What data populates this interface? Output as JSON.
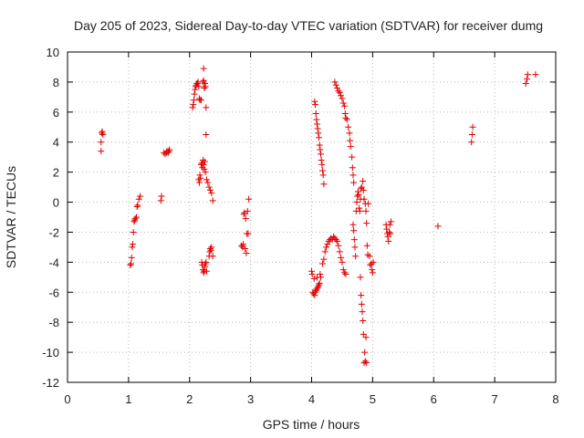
{
  "chart_data": {
    "type": "scatter",
    "title": "Day 205 of 2023, Sidereal Day-to-day VTEC variation (SDTVAR) for receiver dumg",
    "xlabel": "GPS time / hours",
    "ylabel": "SDTVAR / TECUs",
    "xlim": [
      0,
      8
    ],
    "ylim": [
      -12,
      10
    ],
    "xticks": [
      0,
      1,
      2,
      3,
      4,
      5,
      6,
      7,
      8
    ],
    "yticks": [
      -12,
      -10,
      -8,
      -6,
      -4,
      -2,
      0,
      2,
      4,
      6,
      8,
      10
    ],
    "grid": true,
    "marker": "+",
    "series": [
      {
        "name": "SDTVAR",
        "color": "#e00000",
        "points": [
          [
            0.55,
            3.4
          ],
          [
            0.55,
            4.0
          ],
          [
            0.56,
            4.6
          ],
          [
            0.57,
            4.7
          ],
          [
            0.58,
            4.5
          ],
          [
            1.03,
            -4.2
          ],
          [
            1.04,
            -4.1
          ],
          [
            1.05,
            -3.7
          ],
          [
            1.06,
            -3.0
          ],
          [
            1.07,
            -2.8
          ],
          [
            1.08,
            -2.0
          ],
          [
            1.09,
            -1.3
          ],
          [
            1.1,
            -1.2
          ],
          [
            1.11,
            -1.1
          ],
          [
            1.13,
            -1.0
          ],
          [
            1.14,
            -0.3
          ],
          [
            1.15,
            -0.2
          ],
          [
            1.17,
            0.2
          ],
          [
            1.19,
            0.4
          ],
          [
            1.53,
            0.1
          ],
          [
            1.54,
            0.4
          ],
          [
            1.58,
            3.3
          ],
          [
            1.6,
            3.2
          ],
          [
            1.62,
            3.3
          ],
          [
            1.63,
            3.4
          ],
          [
            1.65,
            3.3
          ],
          [
            1.66,
            3.4
          ],
          [
            1.67,
            3.5
          ],
          [
            2.05,
            6.3
          ],
          [
            2.06,
            6.5
          ],
          [
            2.07,
            6.8
          ],
          [
            2.08,
            7.2
          ],
          [
            2.09,
            7.5
          ],
          [
            2.1,
            7.7
          ],
          [
            2.11,
            7.8
          ],
          [
            2.12,
            7.9
          ],
          [
            2.13,
            7.9
          ],
          [
            2.14,
            8.0
          ],
          [
            2.15,
            7.7
          ],
          [
            2.16,
            6.9
          ],
          [
            2.17,
            6.8
          ],
          [
            2.19,
            6.8
          ],
          [
            2.22,
            8.0
          ],
          [
            2.23,
            8.1
          ],
          [
            2.23,
            8.9
          ],
          [
            2.24,
            7.6
          ],
          [
            2.25,
            7.9
          ],
          [
            2.26,
            7.7
          ],
          [
            2.27,
            6.3
          ],
          [
            2.27,
            4.5
          ],
          [
            2.15,
            1.5
          ],
          [
            2.16,
            1.3
          ],
          [
            2.17,
            1.8
          ],
          [
            2.18,
            1.6
          ],
          [
            2.19,
            2.5
          ],
          [
            2.2,
            2.6
          ],
          [
            2.21,
            2.3
          ],
          [
            2.22,
            2.8
          ],
          [
            2.23,
            2.5
          ],
          [
            2.24,
            2.2
          ],
          [
            2.25,
            2.7
          ],
          [
            2.26,
            2.0
          ],
          [
            2.28,
            1.5
          ],
          [
            2.3,
            1.3
          ],
          [
            2.32,
            1.0
          ],
          [
            2.34,
            0.8
          ],
          [
            2.36,
            0.6
          ],
          [
            2.38,
            0.1
          ],
          [
            2.2,
            -4.0
          ],
          [
            2.21,
            -4.2
          ],
          [
            2.22,
            -4.5
          ],
          [
            2.23,
            -4.7
          ],
          [
            2.24,
            -4.6
          ],
          [
            2.25,
            -4.3
          ],
          [
            2.26,
            -4.1
          ],
          [
            2.27,
            -4.0
          ],
          [
            2.28,
            -4.6
          ],
          [
            2.32,
            -3.6
          ],
          [
            2.33,
            -3.3
          ],
          [
            2.34,
            -3.1
          ],
          [
            2.35,
            -3.2
          ],
          [
            2.36,
            -3.0
          ],
          [
            2.38,
            -3.6
          ],
          [
            2.85,
            -2.9
          ],
          [
            2.87,
            -3.0
          ],
          [
            2.88,
            -2.8
          ],
          [
            2.89,
            -0.8
          ],
          [
            2.9,
            -0.7
          ],
          [
            2.91,
            -3.1
          ],
          [
            2.92,
            -1.1
          ],
          [
            2.93,
            -3.4
          ],
          [
            2.94,
            -2.1
          ],
          [
            2.95,
            -0.6
          ],
          [
            2.96,
            -2.1
          ],
          [
            2.97,
            0.2
          ],
          [
            4.0,
            -4.6
          ],
          [
            4.01,
            -4.8
          ],
          [
            4.02,
            -6.0
          ],
          [
            4.03,
            -6.1
          ],
          [
            4.04,
            -5.1
          ],
          [
            4.05,
            -6.2
          ],
          [
            4.06,
            -6.0
          ],
          [
            4.07,
            -5.9
          ],
          [
            4.08,
            -5.8
          ],
          [
            4.09,
            -5.0
          ],
          [
            4.1,
            -5.7
          ],
          [
            4.11,
            -5.6
          ],
          [
            4.12,
            -5.5
          ],
          [
            4.13,
            -5.4
          ],
          [
            4.14,
            -4.8
          ],
          [
            4.15,
            -5.0
          ],
          [
            4.18,
            -4.1
          ],
          [
            4.2,
            -3.8
          ],
          [
            4.22,
            -3.3
          ],
          [
            4.24,
            -3.0
          ],
          [
            4.26,
            -2.8
          ],
          [
            4.28,
            -2.6
          ],
          [
            4.3,
            -2.5
          ],
          [
            4.32,
            -2.4
          ],
          [
            4.34,
            -2.5
          ],
          [
            4.36,
            -2.3
          ],
          [
            4.38,
            -2.4
          ],
          [
            4.4,
            -2.5
          ],
          [
            4.42,
            -2.6
          ],
          [
            4.44,
            -2.9
          ],
          [
            4.46,
            -3.3
          ],
          [
            4.48,
            -3.7
          ],
          [
            4.5,
            -4.0
          ],
          [
            4.52,
            -4.5
          ],
          [
            4.54,
            -4.7
          ],
          [
            4.56,
            -4.8
          ],
          [
            4.05,
            6.7
          ],
          [
            4.06,
            6.5
          ],
          [
            4.07,
            5.9
          ],
          [
            4.08,
            5.5
          ],
          [
            4.09,
            5.2
          ],
          [
            4.1,
            4.9
          ],
          [
            4.11,
            4.6
          ],
          [
            4.12,
            4.3
          ],
          [
            4.13,
            3.8
          ],
          [
            4.14,
            3.5
          ],
          [
            4.15,
            3.2
          ],
          [
            4.16,
            2.8
          ],
          [
            4.17,
            2.5
          ],
          [
            4.18,
            2.1
          ],
          [
            4.19,
            1.8
          ],
          [
            4.2,
            1.2
          ],
          [
            4.38,
            8.0
          ],
          [
            4.4,
            7.8
          ],
          [
            4.42,
            7.6
          ],
          [
            4.44,
            7.4
          ],
          [
            4.46,
            7.3
          ],
          [
            4.48,
            7.1
          ],
          [
            4.5,
            6.9
          ],
          [
            4.52,
            6.6
          ],
          [
            4.54,
            6.4
          ],
          [
            4.55,
            5.9
          ],
          [
            4.56,
            5.6
          ],
          [
            4.58,
            5.5
          ],
          [
            4.6,
            5.0
          ],
          [
            4.62,
            4.6
          ],
          [
            4.63,
            4.1
          ],
          [
            4.64,
            3.7
          ],
          [
            4.66,
            3.0
          ],
          [
            4.67,
            2.3
          ],
          [
            4.68,
            1.8
          ],
          [
            4.69,
            1.3
          ],
          [
            4.68,
            -1.5
          ],
          [
            4.69,
            -1.9
          ],
          [
            4.7,
            -2.5
          ],
          [
            4.71,
            -3.0
          ],
          [
            4.72,
            -3.6
          ],
          [
            4.73,
            -0.6
          ],
          [
            4.74,
            0.0
          ],
          [
            4.75,
            0.4
          ],
          [
            4.76,
            0.7
          ],
          [
            4.77,
            0.5
          ],
          [
            4.78,
            -0.4
          ],
          [
            4.79,
            -0.6
          ],
          [
            4.8,
            0.2
          ],
          [
            4.8,
            -5.0
          ],
          [
            4.81,
            -6.2
          ],
          [
            4.82,
            -6.8
          ],
          [
            4.83,
            -7.3
          ],
          [
            4.84,
            -7.9
          ],
          [
            4.85,
            -8.8
          ],
          [
            4.86,
            -10.7
          ],
          [
            4.87,
            -10.0
          ],
          [
            4.88,
            -10.6
          ],
          [
            4.89,
            -9.0
          ],
          [
            4.9,
            -10.7
          ],
          [
            4.81,
            0.9
          ],
          [
            4.82,
            1.0
          ],
          [
            4.84,
            1.4
          ],
          [
            4.85,
            0.8
          ],
          [
            4.86,
            0.2
          ],
          [
            4.88,
            -0.1
          ],
          [
            4.89,
            -0.6
          ],
          [
            4.9,
            -1.4
          ],
          [
            4.91,
            -2.9
          ],
          [
            4.92,
            -3.5
          ],
          [
            4.93,
            -0.1
          ],
          [
            4.95,
            -3.6
          ],
          [
            4.96,
            -4.2
          ],
          [
            4.98,
            -4.1
          ],
          [
            4.99,
            -4.5
          ],
          [
            5.0,
            -4.7
          ],
          [
            5.01,
            -4.0
          ],
          [
            5.22,
            -1.5
          ],
          [
            5.23,
            -1.8
          ],
          [
            5.24,
            -2.1
          ],
          [
            5.25,
            -2.3
          ],
          [
            5.26,
            -2.6
          ],
          [
            5.27,
            -2.0
          ],
          [
            5.28,
            -1.5
          ],
          [
            5.29,
            -2.1
          ],
          [
            5.3,
            -1.3
          ],
          [
            6.07,
            -1.6
          ],
          [
            6.62,
            4.0
          ],
          [
            6.63,
            4.5
          ],
          [
            6.64,
            5.0
          ],
          [
            7.51,
            7.9
          ],
          [
            7.53,
            8.2
          ],
          [
            7.54,
            8.5
          ],
          [
            7.67,
            8.5
          ]
        ]
      }
    ]
  }
}
